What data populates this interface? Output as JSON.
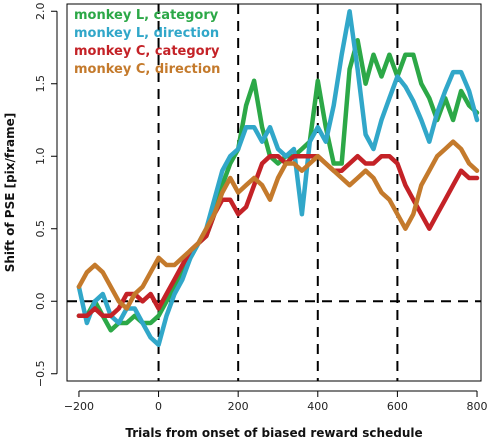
{
  "chart_data": {
    "type": "line",
    "title": "",
    "xlabel": "Trials from onset of biased reward schedule",
    "ylabel": "Shift of PSE [pix/frame]",
    "xlim": [
      -230,
      810
    ],
    "ylim": [
      -0.55,
      2.05
    ],
    "xticks": [
      -200,
      0,
      200,
      400,
      600,
      800
    ],
    "xtick_labels": [
      "−200",
      "0",
      "200",
      "400",
      "600",
      "800"
    ],
    "yticks": [
      -0.5,
      0.0,
      0.5,
      1.0,
      1.5,
      2.0
    ],
    "ytick_labels": [
      "−0.5",
      "0.0",
      "0.5",
      "1.0",
      "1.5",
      "2.0"
    ],
    "hlines": [
      0
    ],
    "vlines": [
      0,
      200,
      400,
      600
    ],
    "grid": false,
    "legend_position": "top-left",
    "series": [
      {
        "name": "monkey L, category",
        "color": "#2ca847",
        "x": [
          -200,
          -180,
          -160,
          -140,
          -120,
          -100,
          -80,
          -60,
          -40,
          -20,
          0,
          20,
          40,
          60,
          80,
          100,
          120,
          140,
          160,
          180,
          200,
          220,
          240,
          260,
          280,
          300,
          320,
          340,
          360,
          380,
          400,
          420,
          440,
          460,
          480,
          500,
          520,
          540,
          560,
          580,
          600,
          620,
          640,
          660,
          680,
          700,
          720,
          740,
          760,
          780,
          800
        ],
        "y": [
          -0.1,
          -0.1,
          0.0,
          -0.1,
          -0.2,
          -0.15,
          -0.15,
          -0.1,
          -0.15,
          -0.15,
          -0.1,
          0.0,
          0.1,
          0.2,
          0.3,
          0.4,
          0.45,
          0.6,
          0.8,
          0.95,
          1.05,
          1.35,
          1.52,
          1.2,
          1.0,
          0.95,
          1.0,
          1.0,
          1.05,
          1.1,
          1.52,
          1.2,
          0.95,
          0.95,
          1.6,
          1.8,
          1.5,
          1.7,
          1.55,
          1.7,
          1.55,
          1.7,
          1.7,
          1.5,
          1.4,
          1.25,
          1.4,
          1.25,
          1.45,
          1.35,
          1.3
        ]
      },
      {
        "name": "monkey L, direction",
        "color": "#31a7c9",
        "x": [
          -200,
          -180,
          -160,
          -140,
          -120,
          -100,
          -80,
          -60,
          -40,
          -20,
          0,
          20,
          40,
          60,
          80,
          100,
          120,
          140,
          160,
          180,
          200,
          220,
          240,
          260,
          280,
          300,
          320,
          340,
          360,
          380,
          400,
          420,
          440,
          460,
          480,
          500,
          520,
          540,
          560,
          580,
          600,
          620,
          640,
          660,
          680,
          700,
          720,
          740,
          760,
          780,
          800
        ],
        "y": [
          0.1,
          -0.15,
          0.0,
          0.05,
          -0.1,
          -0.15,
          -0.05,
          -0.05,
          -0.15,
          -0.25,
          -0.3,
          -0.1,
          0.05,
          0.15,
          0.3,
          0.4,
          0.5,
          0.7,
          0.9,
          1.0,
          1.05,
          1.2,
          1.2,
          1.1,
          1.2,
          1.05,
          1.0,
          1.05,
          0.6,
          1.1,
          1.2,
          1.1,
          1.35,
          1.7,
          2.0,
          1.6,
          1.15,
          1.05,
          1.25,
          1.4,
          1.55,
          1.48,
          1.38,
          1.25,
          1.1,
          1.3,
          1.45,
          1.58,
          1.58,
          1.45,
          1.25
        ]
      },
      {
        "name": "monkey C, category",
        "color": "#c42227",
        "x": [
          -200,
          -180,
          -160,
          -140,
          -120,
          -100,
          -80,
          -60,
          -40,
          -20,
          0,
          20,
          40,
          60,
          80,
          100,
          120,
          140,
          160,
          180,
          200,
          220,
          240,
          260,
          280,
          300,
          320,
          340,
          360,
          380,
          400,
          420,
          440,
          460,
          480,
          500,
          520,
          540,
          560,
          580,
          600,
          620,
          640,
          660,
          680,
          700,
          720,
          740,
          760,
          780,
          800
        ],
        "y": [
          -0.1,
          -0.1,
          -0.05,
          -0.1,
          -0.1,
          -0.05,
          0.05,
          0.05,
          0.0,
          0.05,
          -0.05,
          0.05,
          0.15,
          0.25,
          0.35,
          0.4,
          0.45,
          0.6,
          0.7,
          0.7,
          0.6,
          0.65,
          0.8,
          0.95,
          1.0,
          1.0,
          0.95,
          1.0,
          1.0,
          1.0,
          1.0,
          0.95,
          0.9,
          0.9,
          0.95,
          1.0,
          0.95,
          0.95,
          1.0,
          1.0,
          0.95,
          0.8,
          0.7,
          0.6,
          0.5,
          0.6,
          0.7,
          0.8,
          0.9,
          0.85,
          0.85
        ]
      },
      {
        "name": "monkey C, direction",
        "color": "#c47a2c",
        "x": [
          -200,
          -180,
          -160,
          -140,
          -120,
          -100,
          -80,
          -60,
          -40,
          -20,
          0,
          20,
          40,
          60,
          80,
          100,
          120,
          140,
          160,
          180,
          200,
          220,
          240,
          260,
          280,
          300,
          320,
          340,
          360,
          380,
          400,
          420,
          440,
          460,
          480,
          500,
          520,
          540,
          560,
          580,
          600,
          620,
          640,
          660,
          680,
          700,
          720,
          740,
          760,
          780,
          800
        ],
        "y": [
          0.1,
          0.2,
          0.25,
          0.2,
          0.1,
          0.0,
          -0.05,
          0.05,
          0.1,
          0.2,
          0.3,
          0.25,
          0.25,
          0.3,
          0.35,
          0.4,
          0.5,
          0.6,
          0.75,
          0.85,
          0.75,
          0.8,
          0.85,
          0.8,
          0.7,
          0.85,
          0.95,
          0.95,
          0.9,
          0.95,
          1.0,
          0.95,
          0.9,
          0.85,
          0.8,
          0.85,
          0.9,
          0.85,
          0.75,
          0.7,
          0.6,
          0.5,
          0.6,
          0.8,
          0.9,
          1.0,
          1.05,
          1.1,
          1.05,
          0.95,
          0.9
        ]
      }
    ]
  }
}
